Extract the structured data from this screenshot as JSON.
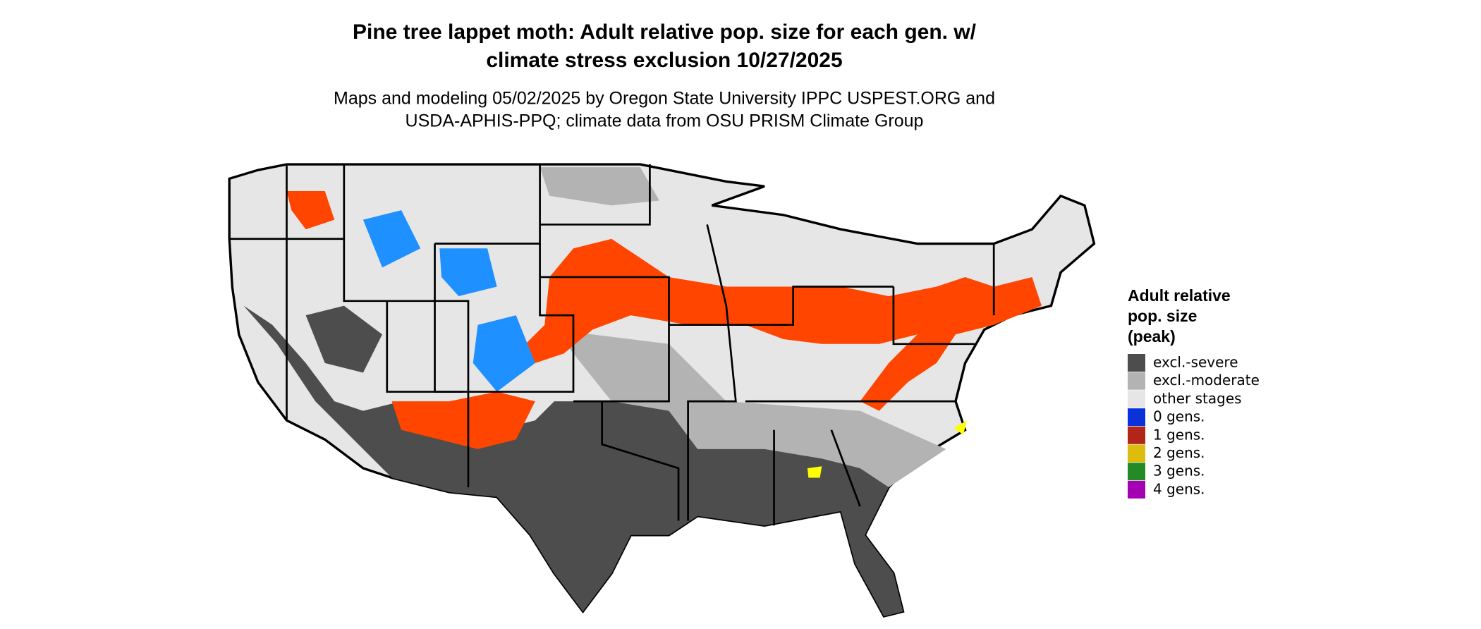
{
  "title": [
    "Pine tree lappet moth: Adult relative pop. size for each gen. w/",
    "climate stress exclusion 10/27/2025"
  ],
  "subtitle": [
    "Maps and modeling 05/02/2025 by Oregon State University IPPC USPEST.ORG and",
    "USDA-APHIS-PPQ; climate data from OSU PRISM Climate Group"
  ],
  "legend": {
    "title": [
      "Adult relative",
      "pop. size",
      "(peak)"
    ],
    "items": [
      {
        "label": "excl.-severe",
        "color": "#4d4d4d"
      },
      {
        "label": "excl.-moderate",
        "color": "#b3b3b3"
      },
      {
        "label": "other stages",
        "color": "#e6e6e6"
      },
      {
        "label": "0 gens.",
        "color": "#0a32d8"
      },
      {
        "label": "1 gens.",
        "color": "#b2261a"
      },
      {
        "label": "2 gens.",
        "color": "#dcbc0c"
      },
      {
        "label": "3 gens.",
        "color": "#248a26"
      },
      {
        "label": "4 gens.",
        "color": "#a400b4"
      }
    ]
  }
}
